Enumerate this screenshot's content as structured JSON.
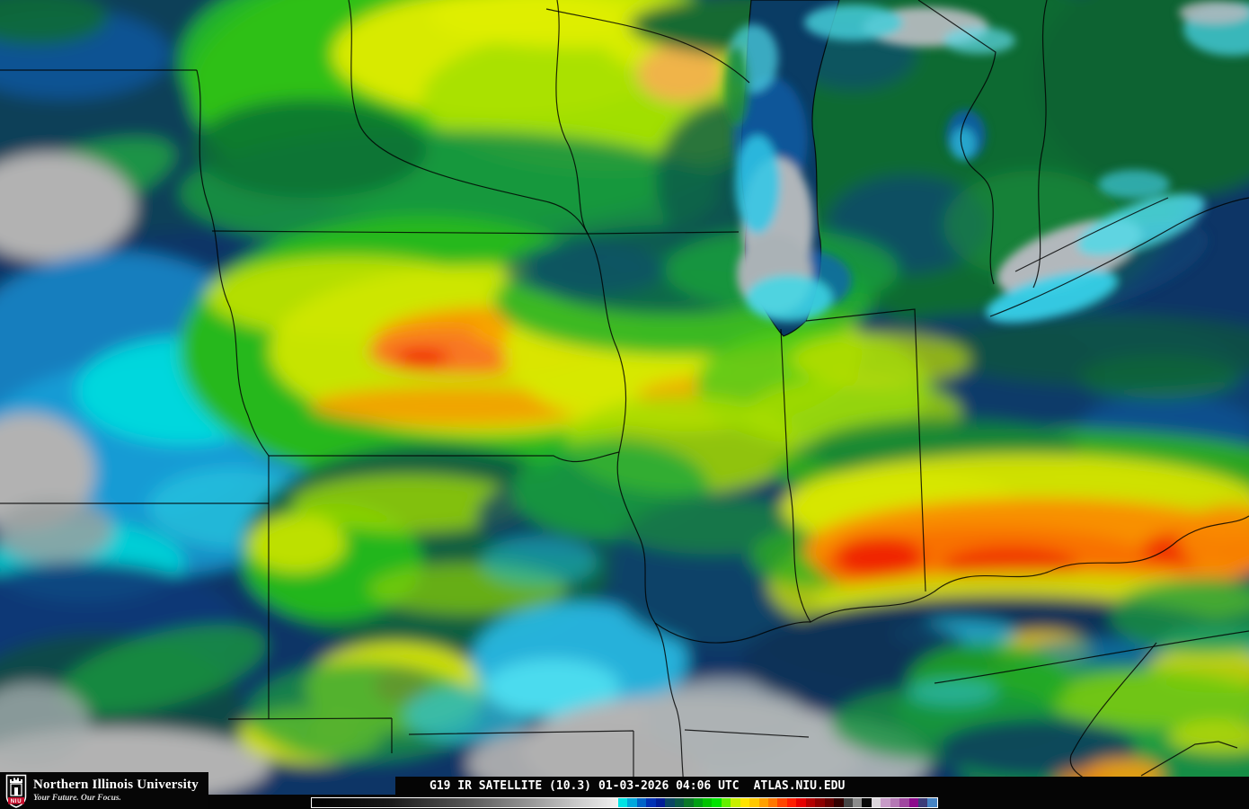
{
  "branding": {
    "logo_acronym": "NIU",
    "logo_color": "#c8102e",
    "university_name": "Northern Illinois University",
    "tagline": "Your Future. Our Focus."
  },
  "caption": {
    "product": "G19 IR SATELLITE (10.3)",
    "datetime": "01-03-2026 04:06 UTC",
    "source": "ATLAS.NIU.EDU"
  },
  "colorbar": {
    "border_color": "#ffffff",
    "ramp_start": "#000000",
    "ramp_end": "#f0f0f0",
    "segments": [
      "#00e4e4",
      "#00a8dc",
      "#0064c8",
      "#0032b4",
      "#001e96",
      "#0a4664",
      "#0a5a46",
      "#0a7828",
      "#00a014",
      "#00c400",
      "#00e400",
      "#64f000",
      "#c8f000",
      "#ffe400",
      "#ffc800",
      "#ffa000",
      "#ff7800",
      "#ff4600",
      "#ff1e00",
      "#e60000",
      "#b40000",
      "#8c0000",
      "#640000",
      "#320000",
      "#464646",
      "#8c8c8c",
      "#0a0a0a",
      "#dcd6dc",
      "#c89cc8",
      "#b478b4",
      "#a048a0",
      "#8c0a8c",
      "#3c3c78",
      "#4684c4"
    ]
  },
  "map_palette": {
    "clear_cold_navy": "#0a3666",
    "low_cloud_gray": "#b4b4b4",
    "cirrus_cyan": "#00dce0",
    "mid_cloud_green": "#28b41e",
    "high_cloud_yellow": "#d8e600",
    "higher_cloud_orange": "#f89000",
    "overshooting_top_red": "#f01c00"
  }
}
